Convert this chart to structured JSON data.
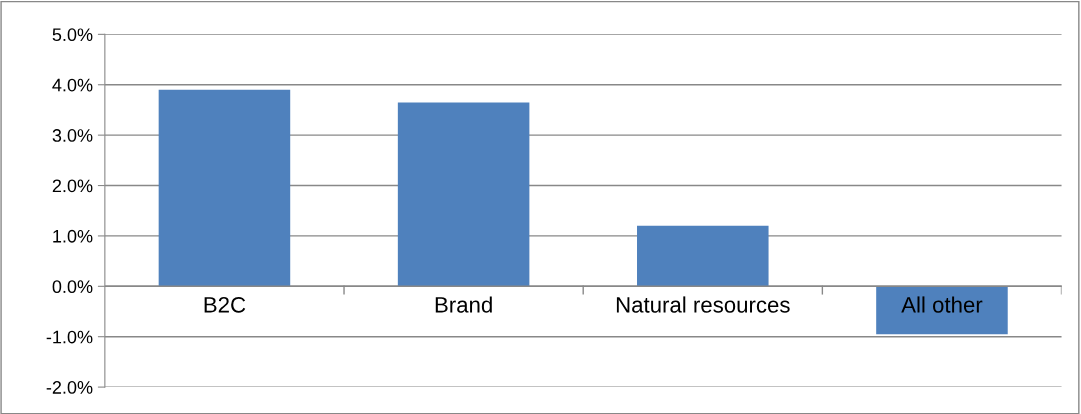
{
  "chart_data": {
    "type": "bar",
    "categories": [
      "B2C",
      "Brand",
      "Natural resources",
      "All other"
    ],
    "values": [
      3.9,
      3.65,
      1.2,
      -0.95
    ],
    "color": "#4f81bd",
    "ylim": [
      -2,
      5
    ],
    "yticks": [
      {
        "value": -2,
        "label": "-2.0%"
      },
      {
        "value": -1,
        "label": "-1.0%"
      },
      {
        "value": 0,
        "label": "0.0%"
      },
      {
        "value": 1,
        "label": "1.0%"
      },
      {
        "value": 2,
        "label": "2.0%"
      },
      {
        "value": 3,
        "label": "3.0%"
      },
      {
        "value": 4,
        "label": "4.0%"
      },
      {
        "value": 5,
        "label": "5.0%"
      }
    ],
    "grid": "y"
  }
}
